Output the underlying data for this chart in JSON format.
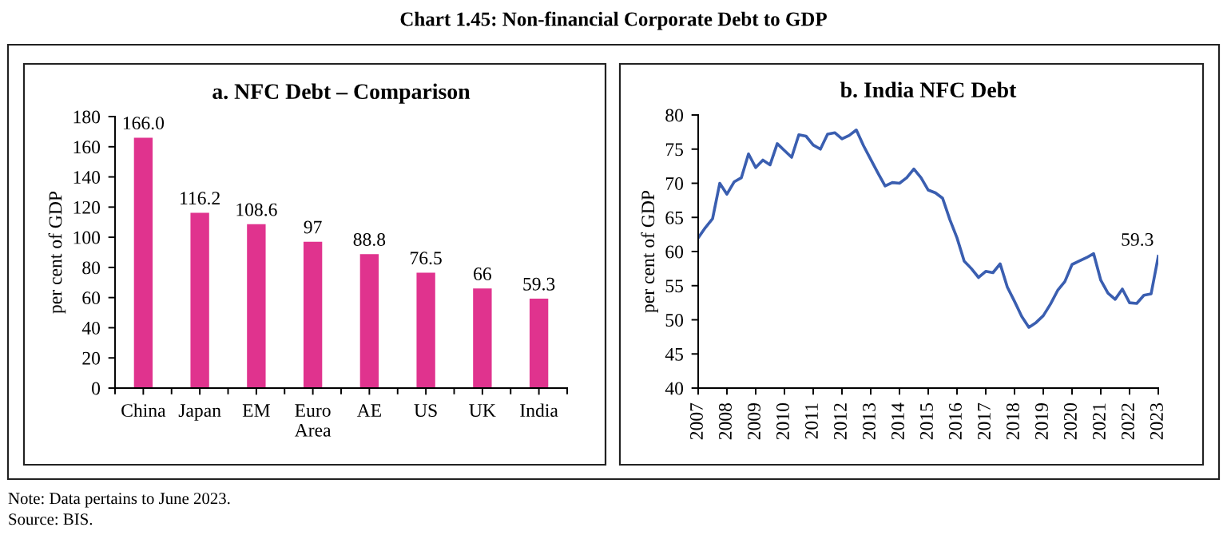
{
  "chart_data": [
    {
      "type": "bar",
      "title": "a. NFC Debt – Comparison",
      "ylabel": "per cent of GDP",
      "categories": [
        "China",
        "Japan",
        "EM",
        "Euro Area",
        "AE",
        "US",
        "UK",
        "India"
      ],
      "values": [
        166.0,
        116.2,
        108.6,
        97,
        88.8,
        76.5,
        66,
        59.3
      ],
      "value_labels": [
        "166.0",
        "116.2",
        "108.6",
        "97",
        "88.8",
        "76.5",
        "66",
        "59.3"
      ],
      "color": "#e0338e",
      "ylim": [
        0,
        180
      ],
      "yticks": [
        0,
        20,
        40,
        60,
        80,
        100,
        120,
        140,
        160,
        180
      ],
      "grid": false,
      "legend": false,
      "annotations": [
        "Chart 1.45: Non-financial Corporate Debt to GDP",
        "Note: Data pertains to June 2023.",
        "Source: BIS."
      ]
    },
    {
      "type": "line",
      "title": "b. India NFC Debt",
      "ylabel": "per cent of GDP",
      "x": [
        2007.0,
        2007.25,
        2007.5,
        2007.75,
        2008.0,
        2008.25,
        2008.5,
        2008.75,
        2009.0,
        2009.25,
        2009.5,
        2009.75,
        2010.0,
        2010.25,
        2010.5,
        2010.75,
        2011.0,
        2011.25,
        2011.5,
        2011.75,
        2012.0,
        2012.25,
        2012.5,
        2012.75,
        2013.0,
        2013.25,
        2013.5,
        2013.75,
        2014.0,
        2014.25,
        2014.5,
        2014.75,
        2015.0,
        2015.25,
        2015.5,
        2015.75,
        2016.0,
        2016.25,
        2016.5,
        2016.75,
        2017.0,
        2017.25,
        2017.5,
        2017.75,
        2018.0,
        2018.25,
        2018.5,
        2018.75,
        2019.0,
        2019.25,
        2019.5,
        2019.75,
        2020.0,
        2020.25,
        2020.5,
        2020.75,
        2021.0,
        2021.25,
        2021.5,
        2021.75,
        2022.0,
        2022.25,
        2022.5,
        2022.75,
        2023.0
      ],
      "series": [
        {
          "color": "#3a5eb0",
          "values": [
            62,
            63.5,
            64.8,
            70,
            68.4,
            70.2,
            70.8,
            74.3,
            72.3,
            73.4,
            72.7,
            75.8,
            74.8,
            73.8,
            77.1,
            76.9,
            75.6,
            75.0,
            77.2,
            77.4,
            76.5,
            77.0,
            77.8,
            75.5,
            73.5,
            71.5,
            69.6,
            70.1,
            70.0,
            70.8,
            72.1,
            70.8,
            69.0,
            68.6,
            67.8,
            64.7,
            62.0,
            58.6,
            57.5,
            56.2,
            57.1,
            56.9,
            58.2,
            54.8,
            52.7,
            50.5,
            48.9,
            49.6,
            50.6,
            52.3,
            54.3,
            55.6,
            58.1,
            58.6,
            59.1,
            59.7,
            55.8,
            53.9,
            53.0,
            54.5,
            52.5,
            52.4,
            53.6,
            53.8,
            59.3
          ]
        }
      ],
      "xlim": [
        2007,
        2023
      ],
      "xticks": [
        2007,
        2008,
        2009,
        2010,
        2011,
        2012,
        2013,
        2014,
        2015,
        2016,
        2017,
        2018,
        2019,
        2020,
        2021,
        2022,
        2023
      ],
      "ylim": [
        40,
        80
      ],
      "yticks": [
        40,
        45,
        50,
        55,
        60,
        65,
        70,
        75,
        80
      ],
      "grid": false,
      "legend": false,
      "marker": "none",
      "line_style": "solid",
      "annotations": [
        {
          "text": "59.3",
          "x": 2023,
          "y": 59.3
        }
      ]
    }
  ]
}
